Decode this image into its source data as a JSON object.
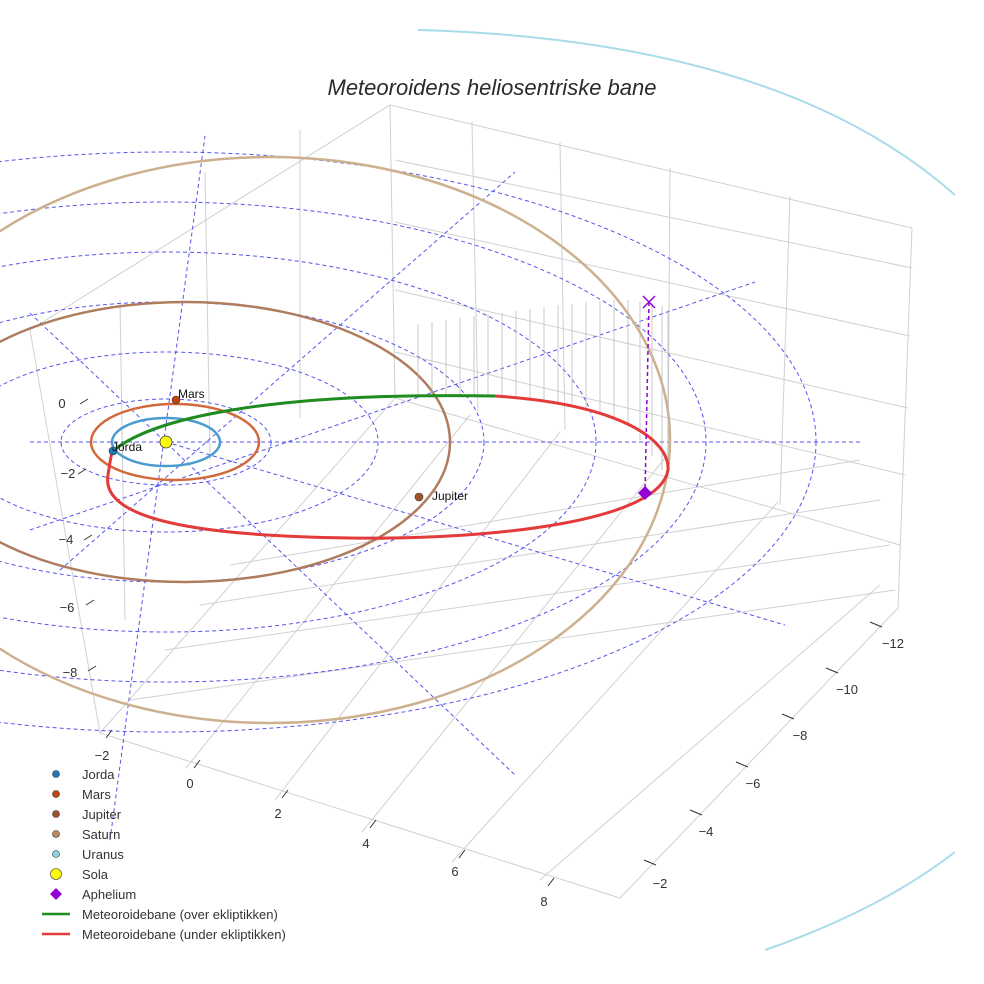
{
  "chart_data": {
    "type": "line",
    "title": "Meteoroidens heliosentriske bane",
    "axes": {
      "x": {
        "ticks": [
          "−12",
          "−10",
          "−8",
          "−6",
          "−4",
          "−2"
        ]
      },
      "y": {
        "ticks": [
          "−2",
          "0",
          "2",
          "4",
          "6",
          "8"
        ]
      },
      "z": {
        "ticks": [
          "0",
          "−2",
          "−4",
          "−6",
          "−8"
        ]
      }
    },
    "grid": true,
    "legend_position": "bottom-left",
    "planet_labels": [
      "Mars",
      "Jorda",
      "Jupiter"
    ],
    "series": [
      {
        "name": "Jorda",
        "marker": "circle",
        "color": "#1f77b4",
        "orbit_color": "#4a9bd0"
      },
      {
        "name": "Mars",
        "marker": "circle",
        "color": "#c1440e",
        "orbit_color": "#d2693c"
      },
      {
        "name": "Jupiter",
        "marker": "circle",
        "color": "#a0522d",
        "orbit_color": "#b07c5e"
      },
      {
        "name": "Saturn",
        "marker": "circle",
        "color": "#c08a5e",
        "orbit_color": "#cdb08e"
      },
      {
        "name": "Uranus",
        "marker": "circle",
        "color": "#8fd3e6",
        "orbit_color": "#a8dce8"
      },
      {
        "name": "Sola",
        "marker": "circle",
        "color": "#ffff00"
      },
      {
        "name": "Aphelium",
        "marker": "diamond",
        "color": "#9400d3"
      },
      {
        "name": "Meteoroidebane (over ekliptikken)",
        "marker": "line",
        "color": "#1e8c1e"
      },
      {
        "name": "Meteoroidebane (under ekliptikken)",
        "marker": "line",
        "color": "#e33a3a"
      }
    ]
  }
}
